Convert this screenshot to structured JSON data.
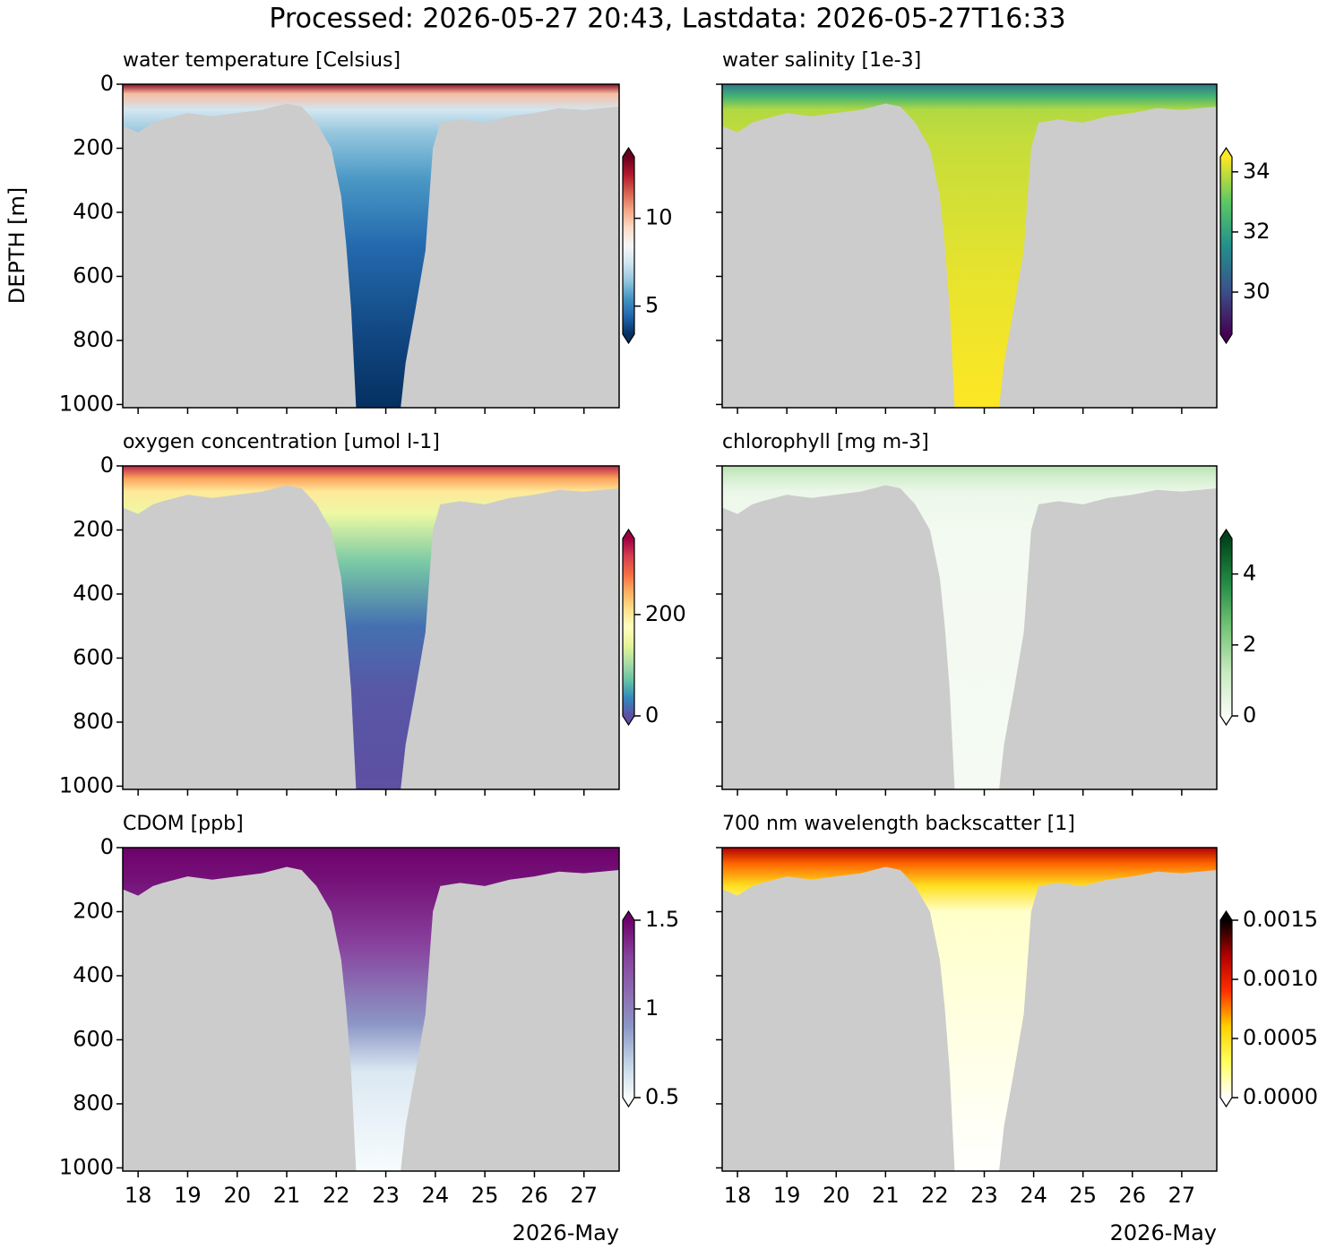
{
  "title": "Processed: 2026-05-27 20:43, Lastdata: 2026-05-27T16:33",
  "section": {
    "x": [
      17.69,
      18.0,
      18.3,
      18.5,
      19.0,
      19.5,
      20.0,
      20.5,
      21.0,
      21.3,
      21.6,
      21.9,
      22.1,
      22.2,
      22.3,
      22.4,
      23.3,
      23.4,
      23.6,
      23.8,
      23.95,
      24.1,
      24.5,
      25.0,
      25.5,
      26.0,
      26.5,
      27.0,
      27.71
    ],
    "bottom_depth": [
      130,
      150,
      120,
      110,
      90,
      100,
      90,
      80,
      60,
      70,
      120,
      200,
      350,
      500,
      700,
      1010,
      1010,
      870,
      700,
      520,
      200,
      120,
      110,
      120,
      100,
      90,
      75,
      80,
      70
    ]
  },
  "chart_data": [
    {
      "type": "heatmap",
      "title": "water temperature [Celsius]",
      "ylabel": "DEPTH [m]",
      "ylim": [
        0,
        1010
      ],
      "yticks": [
        0,
        200,
        400,
        600,
        800,
        1000
      ],
      "xlim": [
        17.69,
        27.71
      ],
      "xticks": [
        18,
        19,
        20,
        21,
        22,
        23,
        24,
        25,
        26,
        27
      ],
      "show_xtick_labels": false,
      "show_ytick_labels": true,
      "colorbar": {
        "lim": [
          3.4,
          13.5
        ],
        "ticks": [
          5,
          10
        ],
        "colors": [
          "#053061",
          "#2166ac",
          "#4393c3",
          "#92c5de",
          "#d1e5f0",
          "#f7f7f7",
          "#fddbc7",
          "#f4a582",
          "#d6604d",
          "#b2182b",
          "#67001f"
        ]
      },
      "profile": {
        "depth": [
          0,
          30,
          80,
          150,
          300,
          500,
          800,
          1010
        ],
        "values": [
          13,
          10,
          7.5,
          6.5,
          5.5,
          4.5,
          3.8,
          3.4
        ]
      }
    },
    {
      "type": "heatmap",
      "title": "water salinity [1e-3]",
      "ylim": [
        0,
        1010
      ],
      "yticks": [
        0,
        200,
        400,
        600,
        800,
        1000
      ],
      "xlim": [
        17.69,
        27.71
      ],
      "xticks": [
        18,
        19,
        20,
        21,
        22,
        23,
        24,
        25,
        26,
        27
      ],
      "show_xtick_labels": false,
      "show_ytick_labels": false,
      "colorbar": {
        "lim": [
          28.6,
          34.5
        ],
        "ticks": [
          30,
          32,
          34
        ],
        "colors": [
          "#440154",
          "#3b528b",
          "#21918c",
          "#5ec962",
          "#fde725"
        ]
      },
      "profile": {
        "depth": [
          0,
          40,
          80,
          200,
          600,
          1010
        ],
        "values": [
          31,
          32.5,
          33.8,
          34.0,
          34.3,
          34.6
        ]
      }
    },
    {
      "type": "heatmap",
      "title": "oxygen concentration [umol l-1]",
      "ylim": [
        0,
        1010
      ],
      "yticks": [
        0,
        200,
        400,
        600,
        800,
        1000
      ],
      "xlim": [
        17.69,
        27.71
      ],
      "xticks": [
        18,
        19,
        20,
        21,
        22,
        23,
        24,
        25,
        26,
        27
      ],
      "show_xtick_labels": false,
      "show_ytick_labels": true,
      "colorbar": {
        "lim": [
          0,
          350
        ],
        "ticks": [
          0,
          200
        ],
        "colors": [
          "#5e4fa2",
          "#3288bd",
          "#66c2a5",
          "#abdda4",
          "#e6f598",
          "#ffffbf",
          "#fee08b",
          "#fdae61",
          "#f46d43",
          "#d53e4f",
          "#9e0142"
        ]
      },
      "profile": {
        "depth": [
          0,
          40,
          80,
          150,
          300,
          500,
          700,
          1010
        ],
        "values": [
          330,
          250,
          200,
          150,
          80,
          20,
          5,
          0
        ]
      }
    },
    {
      "type": "heatmap",
      "title": "chlorophyll [mg m-3]",
      "ylim": [
        0,
        1010
      ],
      "yticks": [
        0,
        200,
        400,
        600,
        800,
        1000
      ],
      "xlim": [
        17.69,
        27.71
      ],
      "xticks": [
        18,
        19,
        20,
        21,
        22,
        23,
        24,
        25,
        26,
        27
      ],
      "show_xtick_labels": false,
      "show_ytick_labels": false,
      "colorbar": {
        "lim": [
          0,
          5
        ],
        "ticks": [
          0,
          2,
          4
        ],
        "colors": [
          "#f7fcf5",
          "#c7e9c0",
          "#74c476",
          "#238b45",
          "#00441b"
        ]
      },
      "profile": {
        "depth": [
          0,
          30,
          80,
          200,
          1010
        ],
        "values": [
          1.5,
          1,
          0.3,
          0.1,
          0.05
        ]
      }
    },
    {
      "type": "heatmap",
      "title": "CDOM [ppb]",
      "xlabel": "2026-May",
      "ylim": [
        0,
        1010
      ],
      "yticks": [
        0,
        200,
        400,
        600,
        800,
        1000
      ],
      "xlim": [
        17.69,
        27.71
      ],
      "xticks": [
        18,
        19,
        20,
        21,
        22,
        23,
        24,
        25,
        26,
        27
      ],
      "show_xtick_labels": true,
      "show_ytick_labels": true,
      "colorbar": {
        "lim": [
          0.5,
          1.5
        ],
        "ticks": [
          0.5,
          1.0,
          1.5
        ],
        "colors": [
          "#f7fcfd",
          "#bfd3e6",
          "#8c96c6",
          "#8c6bb1",
          "#88419d",
          "#6e016b"
        ]
      },
      "profile": {
        "depth": [
          0,
          100,
          300,
          550,
          700,
          1010
        ],
        "values": [
          1.5,
          1.45,
          1.3,
          0.9,
          0.6,
          0.5
        ]
      }
    },
    {
      "type": "heatmap",
      "title": "700 nm wavelength backscatter [1]",
      "xlabel": "2026-May",
      "ylim": [
        0,
        1010
      ],
      "yticks": [
        0,
        200,
        400,
        600,
        800,
        1000
      ],
      "xlim": [
        17.69,
        27.71
      ],
      "xticks": [
        18,
        19,
        20,
        21,
        22,
        23,
        24,
        25,
        26,
        27
      ],
      "show_xtick_labels": true,
      "show_ytick_labels": false,
      "colorbar": {
        "lim": [
          0,
          0.0015
        ],
        "ticks": [
          {
            "value": 0,
            "label": "0.0000"
          },
          {
            "value": 0.0005,
            "label": "0.0005"
          },
          {
            "value": 0.001,
            "label": "0.0010"
          },
          {
            "value": 0.0015,
            "label": "0.0015"
          }
        ],
        "colors": [
          "#ffffff",
          "#ffff60",
          "#ffd000",
          "#ff3000",
          "#b00000",
          "#000000"
        ]
      },
      "profile": {
        "depth": [
          0,
          50,
          120,
          200,
          1010
        ],
        "values": [
          0.0012,
          0.0008,
          0.0005,
          0.0001,
          0
        ]
      }
    }
  ]
}
